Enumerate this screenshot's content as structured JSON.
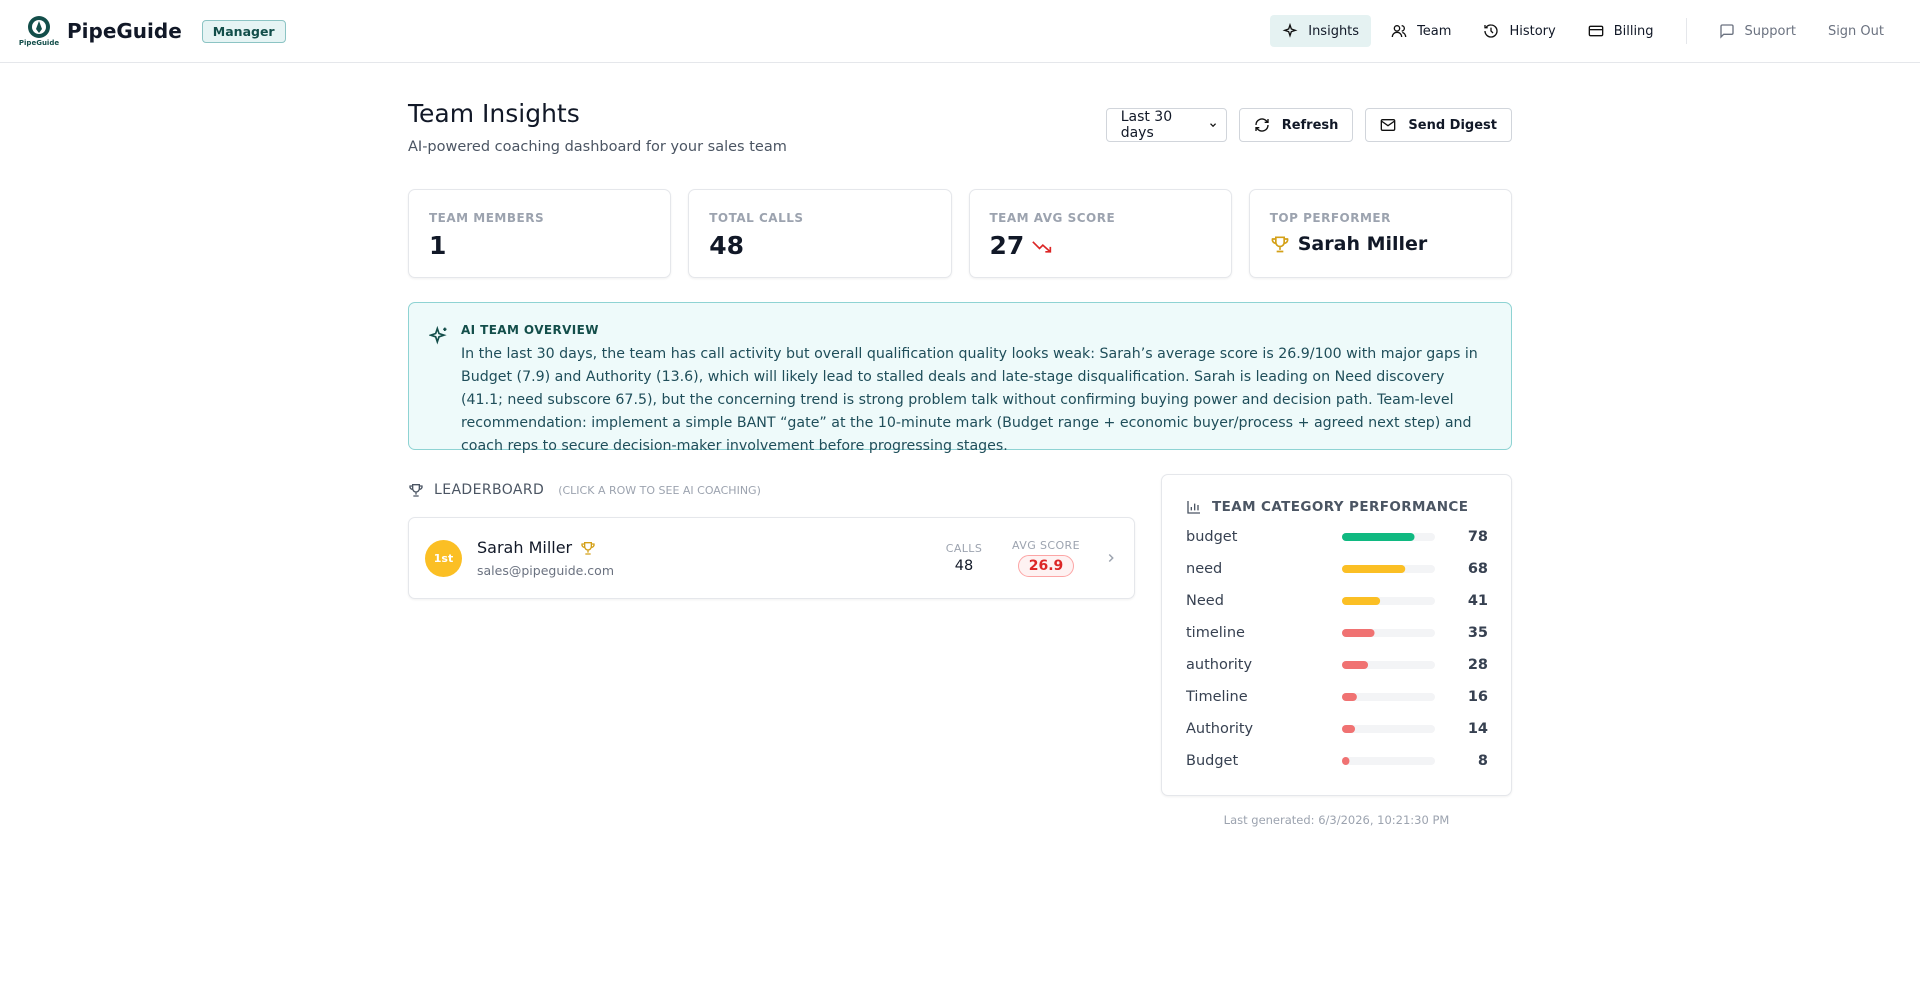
{
  "header": {
    "logo_text": "PipeGuide",
    "brand": "PipeGuide",
    "role_badge": "Manager",
    "nav": [
      "Insights",
      "Team",
      "History",
      "Billing"
    ],
    "secondary_nav": [
      "Support",
      "Sign Out"
    ]
  },
  "page": {
    "title": "Team Insights",
    "subtitle": "AI-powered coaching dashboard for your sales team",
    "period": "Last 30 days",
    "actions": [
      "Refresh",
      "Send Digest"
    ]
  },
  "stats": [
    {
      "label": "TEAM MEMBERS",
      "value": 1
    },
    {
      "label": "TOTAL CALLS",
      "value": 48
    },
    {
      "label": "TEAM AVG SCORE",
      "value": 27
    },
    {
      "label": "TOP PERFORMER",
      "value": "Sarah Miller"
    }
  ],
  "overview": {
    "title": "AI TEAM OVERVIEW",
    "text": "In the last 30 days, the team has call activity but overall qualification quality looks weak: Sarah’s average score is 26.9/100 with major gaps in Budget (7.9) and Authority (13.6), which will likely lead to stalled deals and late-stage disqualification. Sarah is leading on Need discovery (41.1; need subscore 67.5), but the concerning trend is strong problem talk without confirming buying power and decision path. Team-level recommendation: implement a simple BANT “gate” at the 10-minute mark (Budget range + economic buyer/process + agreed next step) and coach reps to secure decision-maker involvement before progressing stages."
  },
  "leaderboard": {
    "title": "LEADERBOARD",
    "hint": "(CLICK A ROW TO SEE AI COACHING)",
    "rows": [
      {
        "rank": "1st",
        "name": "Sarah Miller",
        "email": "sales@pipeguide.com",
        "calls_label": "CALLS",
        "calls": 48,
        "score_label": "AVG SCORE",
        "score": 26.9
      }
    ]
  },
  "category_performance": {
    "title": "TEAM CATEGORY PERFORMANCE",
    "xlim": [
      0,
      100
    ],
    "items": [
      {
        "name": "budget",
        "value": 78,
        "color": "#10b981"
      },
      {
        "name": "need",
        "value": 68,
        "color": "#fbbf24"
      },
      {
        "name": "Need",
        "value": 41,
        "color": "#fbbf24"
      },
      {
        "name": "timeline",
        "value": 35,
        "color": "#f07272"
      },
      {
        "name": "authority",
        "value": 28,
        "color": "#f07272"
      },
      {
        "name": "Timeline",
        "value": 16,
        "color": "#f07272"
      },
      {
        "name": "Authority",
        "value": 14,
        "color": "#f07272"
      },
      {
        "name": "Budget",
        "value": 8,
        "color": "#f07272"
      }
    ]
  },
  "footer": {
    "last_generated": "Last generated: 6/3/2026, 10:21:30 PM"
  }
}
